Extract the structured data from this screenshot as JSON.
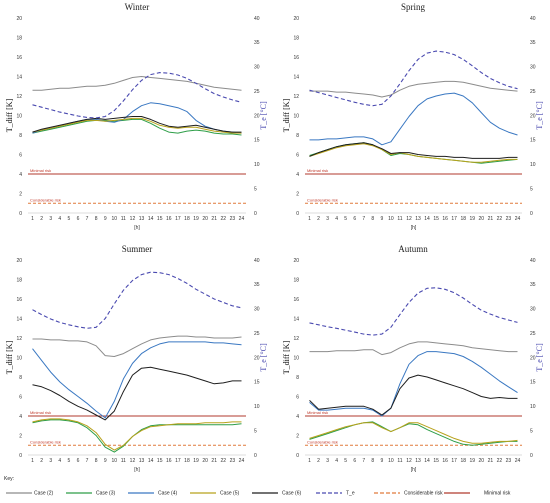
{
  "key_label": "Key:",
  "chart_data": [
    {
      "type": "line",
      "title": "Winter",
      "xlabel": "[h]",
      "ylabel": "T_diff [K]",
      "ylabel_right": "T_e [°C]",
      "x": [
        1,
        2,
        3,
        4,
        5,
        6,
        7,
        8,
        9,
        10,
        11,
        12,
        13,
        14,
        15,
        16,
        17,
        18,
        19,
        20,
        21,
        22,
        23,
        24
      ],
      "ylim": [
        0,
        20
      ],
      "ylim_right": [
        0,
        40
      ],
      "yticks": [
        0,
        2,
        4,
        6,
        8,
        10,
        12,
        14,
        16,
        18,
        20
      ],
      "yticks_right": [
        0,
        5,
        10,
        15,
        20,
        25,
        30,
        35,
        40
      ],
      "thresholds": [
        {
          "name": "Minimal risk",
          "value": 4
        },
        {
          "name": "Considerable risk",
          "value": 1
        }
      ],
      "series": [
        {
          "name": "Case (2)",
          "values": [
            12.6,
            12.6,
            12.7,
            12.8,
            12.8,
            12.9,
            13.0,
            13.0,
            13.1,
            13.3,
            13.6,
            13.9,
            14.0,
            13.9,
            13.8,
            13.7,
            13.6,
            13.5,
            13.3,
            13.1,
            12.9,
            12.8,
            12.7,
            12.6
          ]
        },
        {
          "name": "Case (3)",
          "values": [
            8.2,
            8.4,
            8.6,
            8.8,
            9.0,
            9.2,
            9.4,
            9.5,
            9.5,
            9.4,
            9.5,
            9.6,
            9.6,
            9.2,
            8.7,
            8.3,
            8.2,
            8.4,
            8.5,
            8.4,
            8.2,
            8.1,
            8.1,
            8.0
          ]
        },
        {
          "name": "Case (4)",
          "values": [
            8.2,
            8.5,
            8.7,
            8.9,
            9.2,
            9.4,
            9.6,
            9.6,
            9.4,
            9.3,
            9.6,
            10.4,
            11.0,
            11.3,
            11.2,
            11.0,
            10.8,
            10.4,
            9.5,
            8.9,
            8.6,
            8.4,
            8.3,
            8.2
          ]
        },
        {
          "name": "Case (5)",
          "values": [
            8.3,
            8.5,
            8.7,
            8.9,
            9.1,
            9.3,
            9.5,
            9.5,
            9.4,
            9.5,
            9.6,
            9.7,
            9.7,
            9.4,
            9.0,
            8.8,
            8.7,
            8.8,
            8.8,
            8.6,
            8.4,
            8.3,
            8.2,
            8.2
          ]
        },
        {
          "name": "Case (6)",
          "values": [
            8.3,
            8.6,
            8.8,
            9.0,
            9.2,
            9.4,
            9.6,
            9.7,
            9.6,
            9.7,
            9.8,
            9.9,
            9.9,
            9.6,
            9.2,
            8.9,
            8.8,
            8.9,
            9.0,
            8.8,
            8.6,
            8.4,
            8.3,
            8.3
          ]
        }
      ],
      "right_series": {
        "name": "T_e",
        "values": [
          22.2,
          21.7,
          21.2,
          20.7,
          20.3,
          19.9,
          19.6,
          19.5,
          19.8,
          21.0,
          23.0,
          25.3,
          27.2,
          28.4,
          28.8,
          28.7,
          28.3,
          27.6,
          26.6,
          25.5,
          24.5,
          23.8,
          23.2,
          22.7
        ]
      }
    },
    {
      "type": "line",
      "title": "Spring",
      "xlabel": "[h]",
      "ylabel": "T_diff [K]",
      "ylabel_right": "T_e [°C]",
      "x": [
        1,
        2,
        3,
        4,
        5,
        6,
        7,
        8,
        9,
        10,
        11,
        12,
        13,
        14,
        15,
        16,
        17,
        18,
        19,
        20,
        21,
        22,
        23,
        24
      ],
      "ylim": [
        0,
        20
      ],
      "ylim_right": [
        0,
        40
      ],
      "yticks": [
        0,
        2,
        4,
        6,
        8,
        10,
        12,
        14,
        16,
        18,
        20
      ],
      "yticks_right": [
        0,
        5,
        10,
        15,
        20,
        25,
        30,
        35,
        40
      ],
      "thresholds": [
        {
          "name": "Minimal risk",
          "value": 4
        },
        {
          "name": "Considerable risk",
          "value": 1
        }
      ],
      "series": [
        {
          "name": "Case (2)",
          "values": [
            12.5,
            12.5,
            12.5,
            12.4,
            12.4,
            12.3,
            12.2,
            12.1,
            11.9,
            12.1,
            12.6,
            13.0,
            13.2,
            13.3,
            13.4,
            13.5,
            13.5,
            13.4,
            13.2,
            13.0,
            12.8,
            12.7,
            12.6,
            12.5
          ]
        },
        {
          "name": "Case (3)",
          "values": [
            5.9,
            6.2,
            6.5,
            6.8,
            7.0,
            7.1,
            7.2,
            7.0,
            6.5,
            5.9,
            6.1,
            6.0,
            5.8,
            5.7,
            5.6,
            5.5,
            5.4,
            5.3,
            5.2,
            5.1,
            5.2,
            5.3,
            5.4,
            5.5
          ]
        },
        {
          "name": "Case (4)",
          "values": [
            7.5,
            7.5,
            7.6,
            7.6,
            7.7,
            7.8,
            7.8,
            7.6,
            7.0,
            7.3,
            8.6,
            9.9,
            11.0,
            11.7,
            12.0,
            12.2,
            12.3,
            12.0,
            11.3,
            10.3,
            9.3,
            8.7,
            8.3,
            8.0
          ]
        },
        {
          "name": "Case (5)",
          "values": [
            5.8,
            6.1,
            6.4,
            6.7,
            6.9,
            7.0,
            7.1,
            6.9,
            6.5,
            6.0,
            6.2,
            6.0,
            5.8,
            5.7,
            5.6,
            5.5,
            5.4,
            5.3,
            5.2,
            5.2,
            5.3,
            5.4,
            5.5,
            5.5
          ]
        },
        {
          "name": "Case (6)",
          "values": [
            5.8,
            6.2,
            6.5,
            6.8,
            7.0,
            7.1,
            7.2,
            7.0,
            6.6,
            6.1,
            6.2,
            6.2,
            6.0,
            5.9,
            5.8,
            5.8,
            5.7,
            5.7,
            5.6,
            5.6,
            5.6,
            5.6,
            5.7,
            5.7
          ]
        }
      ],
      "right_series": {
        "name": "T_e",
        "values": [
          25.2,
          24.7,
          24.2,
          23.7,
          23.2,
          22.7,
          22.3,
          22.0,
          22.3,
          24.0,
          26.5,
          29.2,
          31.5,
          32.8,
          33.2,
          33.0,
          32.5,
          31.5,
          30.2,
          28.8,
          27.6,
          26.7,
          26.0,
          25.5
        ]
      }
    },
    {
      "type": "line",
      "title": "Summer",
      "xlabel": "[h]",
      "ylabel": "T_diff [K]",
      "ylabel_right": "T_e [°C]",
      "x": [
        1,
        2,
        3,
        4,
        5,
        6,
        7,
        8,
        9,
        10,
        11,
        12,
        13,
        14,
        15,
        16,
        17,
        18,
        19,
        20,
        21,
        22,
        23,
        24
      ],
      "ylim": [
        0,
        20
      ],
      "ylim_right": [
        0,
        40
      ],
      "yticks": [
        0,
        2,
        4,
        6,
        8,
        10,
        12,
        14,
        16,
        18,
        20
      ],
      "yticks_right": [
        0,
        5,
        10,
        15,
        20,
        25,
        30,
        35,
        40
      ],
      "thresholds": [
        {
          "name": "Minimal risk",
          "value": 4
        },
        {
          "name": "Considerable risk",
          "value": 1
        }
      ],
      "series": [
        {
          "name": "Case (2)",
          "values": [
            11.9,
            11.9,
            11.8,
            11.8,
            11.7,
            11.7,
            11.6,
            11.2,
            10.2,
            10.1,
            10.4,
            10.9,
            11.4,
            11.8,
            12.0,
            12.1,
            12.2,
            12.2,
            12.1,
            12.1,
            12.0,
            12.0,
            12.0,
            12.1
          ]
        },
        {
          "name": "Case (3)",
          "values": [
            3.3,
            3.5,
            3.6,
            3.6,
            3.5,
            3.3,
            2.8,
            2.0,
            0.8,
            0.3,
            0.9,
            1.9,
            2.6,
            3.0,
            3.1,
            3.1,
            3.1,
            3.1,
            3.1,
            3.1,
            3.1,
            3.1,
            3.1,
            3.2
          ]
        },
        {
          "name": "Case (4)",
          "values": [
            10.9,
            9.7,
            8.5,
            7.5,
            6.7,
            6.0,
            5.3,
            4.5,
            3.8,
            5.5,
            7.8,
            9.4,
            10.4,
            11.0,
            11.4,
            11.6,
            11.6,
            11.6,
            11.6,
            11.6,
            11.5,
            11.5,
            11.4,
            11.3
          ]
        },
        {
          "name": "Case (5)",
          "values": [
            3.4,
            3.6,
            3.7,
            3.7,
            3.6,
            3.4,
            3.0,
            2.3,
            1.1,
            0.5,
            1.0,
            1.9,
            2.5,
            2.9,
            3.0,
            3.1,
            3.2,
            3.2,
            3.2,
            3.3,
            3.3,
            3.3,
            3.4,
            3.4
          ]
        },
        {
          "name": "Case (6)",
          "values": [
            7.2,
            7.0,
            6.6,
            6.1,
            5.5,
            5.0,
            4.6,
            4.1,
            3.6,
            4.5,
            6.5,
            8.2,
            8.9,
            9.0,
            8.8,
            8.6,
            8.4,
            8.2,
            7.9,
            7.6,
            7.3,
            7.4,
            7.6,
            7.6
          ]
        }
      ],
      "right_series": {
        "name": "T_e",
        "values": [
          29.8,
          28.8,
          27.9,
          27.2,
          26.7,
          26.3,
          26.0,
          26.2,
          28.0,
          31.0,
          33.8,
          35.8,
          37.0,
          37.5,
          37.4,
          37.0,
          36.2,
          35.2,
          34.0,
          33.0,
          32.0,
          31.3,
          30.6,
          30.2
        ]
      }
    },
    {
      "type": "line",
      "title": "Autumn",
      "xlabel": "[h]",
      "ylabel": "T_diff [K]",
      "ylabel_right": "T_e [°C]",
      "x": [
        1,
        2,
        3,
        4,
        5,
        6,
        7,
        8,
        9,
        10,
        11,
        12,
        13,
        14,
        15,
        16,
        17,
        18,
        19,
        20,
        21,
        22,
        23,
        24
      ],
      "ylim": [
        0,
        20
      ],
      "ylim_right": [
        0,
        40
      ],
      "yticks": [
        0,
        2,
        4,
        6,
        8,
        10,
        12,
        14,
        16,
        18,
        20
      ],
      "yticks_right": [
        0,
        5,
        10,
        15,
        20,
        25,
        30,
        35,
        40
      ],
      "thresholds": [
        {
          "name": "Minimal risk",
          "value": 4
        },
        {
          "name": "Considerable risk",
          "value": 1
        }
      ],
      "series": [
        {
          "name": "Case (2)",
          "values": [
            10.6,
            10.6,
            10.6,
            10.7,
            10.7,
            10.7,
            10.8,
            10.8,
            10.3,
            10.5,
            11.0,
            11.4,
            11.6,
            11.6,
            11.5,
            11.4,
            11.3,
            11.2,
            11.0,
            10.9,
            10.8,
            10.7,
            10.6,
            10.6
          ]
        },
        {
          "name": "Case (3)",
          "values": [
            1.6,
            1.9,
            2.2,
            2.5,
            2.8,
            3.1,
            3.3,
            3.4,
            2.9,
            2.4,
            2.8,
            3.2,
            3.1,
            2.6,
            2.2,
            1.8,
            1.4,
            1.1,
            1.0,
            1.1,
            1.2,
            1.3,
            1.4,
            1.4
          ]
        },
        {
          "name": "Case (4)",
          "values": [
            5.4,
            4.6,
            4.6,
            4.7,
            4.8,
            4.8,
            4.8,
            4.6,
            4.0,
            4.8,
            7.3,
            9.3,
            10.2,
            10.6,
            10.6,
            10.5,
            10.4,
            10.1,
            9.6,
            9.0,
            8.3,
            7.6,
            7.0,
            6.4
          ]
        },
        {
          "name": "Case (5)",
          "values": [
            1.7,
            2.0,
            2.3,
            2.6,
            2.9,
            3.1,
            3.3,
            3.3,
            2.8,
            2.4,
            2.8,
            3.3,
            3.3,
            2.9,
            2.5,
            2.1,
            1.7,
            1.4,
            1.2,
            1.2,
            1.3,
            1.4,
            1.4,
            1.5
          ]
        },
        {
          "name": "Case (6)",
          "values": [
            5.6,
            4.7,
            4.8,
            4.9,
            5.0,
            5.0,
            5.0,
            4.7,
            4.1,
            4.8,
            6.8,
            7.9,
            8.2,
            8.0,
            7.7,
            7.4,
            7.1,
            6.8,
            6.4,
            6.0,
            5.8,
            5.9,
            5.8,
            5.8
          ]
        }
      ],
      "right_series": {
        "name": "T_e",
        "values": [
          27.1,
          26.7,
          26.3,
          26.0,
          25.6,
          25.2,
          24.8,
          24.6,
          24.8,
          26.2,
          28.8,
          31.3,
          33.2,
          34.2,
          34.3,
          34.0,
          33.3,
          32.2,
          30.9,
          29.7,
          28.9,
          28.2,
          27.7,
          27.2
        ]
      }
    }
  ],
  "legend": [
    {
      "name": "Case (2)",
      "color": "#8c8c8c",
      "style": "solid"
    },
    {
      "name": "Case (3)",
      "color": "#2e9e48",
      "style": "solid"
    },
    {
      "name": "Case (4)",
      "color": "#3a78c2",
      "style": "solid"
    },
    {
      "name": "Case (5)",
      "color": "#b8a21c",
      "style": "solid"
    },
    {
      "name": "Case (6)",
      "color": "#1e1e1e",
      "style": "solid"
    },
    {
      "name": "T_e",
      "color": "#4a4ab0",
      "style": "dashed"
    },
    {
      "name": "Considerable risk",
      "color": "#e07a3c",
      "style": "dashed"
    },
    {
      "name": "Minimal risk",
      "color": "#b03a2e",
      "style": "solid"
    }
  ]
}
